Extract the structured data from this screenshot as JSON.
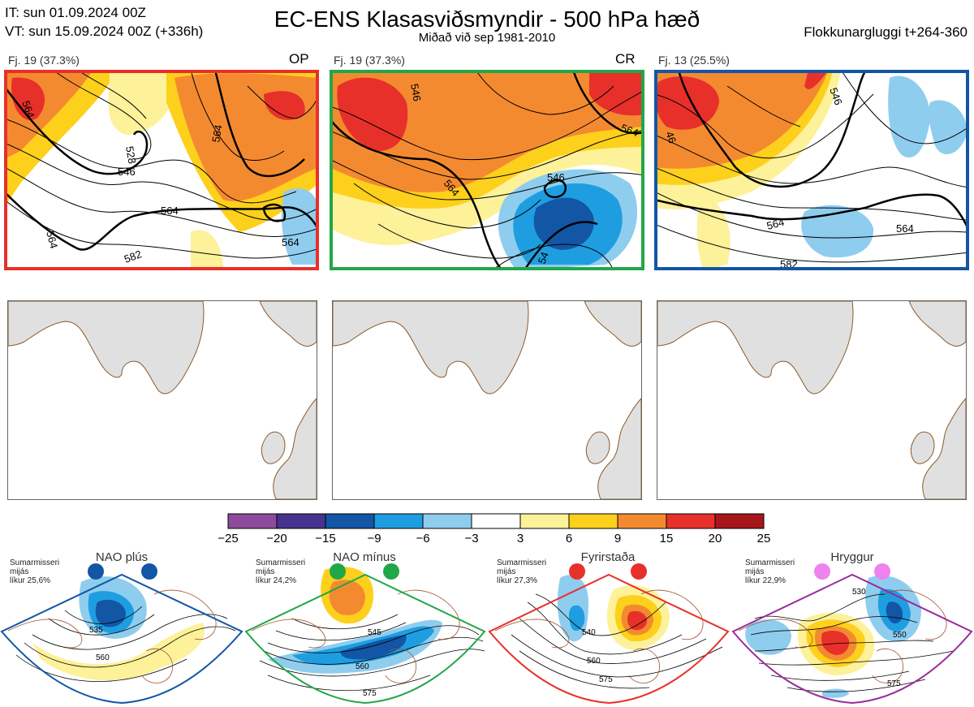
{
  "header": {
    "it_line": "IT: sun 01.09.2024 00Z",
    "vt_line": "VT: sun 15.09.2024 00Z  (+336h)",
    "title": "EC-ENS Klasasviðsmyndir - 500 hPa hæð",
    "subtitle": "Miðað við sep 1981-2010",
    "window": "Flokkunargluggi t+264-360"
  },
  "clusters": [
    {
      "label": "Fj. 19 (37.3%)",
      "tag": "OP",
      "border_color": "#e8302a",
      "contour_labels": [
        "564",
        "564",
        "546",
        "528",
        "564",
        "564",
        "564",
        "564",
        "582"
      ]
    },
    {
      "label": "Fj. 19 (37.3%)",
      "tag": "CR",
      "border_color": "#22a64a",
      "contour_labels": [
        "546",
        "564",
        "564",
        "546",
        "54"
      ]
    },
    {
      "label": "Fj. 13 (25.5%)",
      "tag": "",
      "border_color": "#1256a5",
      "contour_labels": [
        "46",
        "546",
        "564",
        "564",
        "582"
      ]
    }
  ],
  "colorbar": {
    "ticks": [
      "−25",
      "−20",
      "−15",
      "−9",
      "−6",
      "−3",
      "3",
      "6",
      "9",
      "15",
      "20",
      "25"
    ],
    "colors": [
      "#8e4a9c",
      "#46338f",
      "#1256a5",
      "#1e9ee0",
      "#8fcdef",
      "#ffffff",
      "#fdf199",
      "#fdd01c",
      "#f48a30",
      "#e8302a",
      "#a8161b"
    ]
  },
  "regimes": [
    {
      "title": "NAO plús",
      "info": [
        "Sumarmisseri",
        "mijás",
        "líkur 25,6%"
      ],
      "color": "#1256a5",
      "labels": [
        "535",
        "560"
      ]
    },
    {
      "title": "NAO mínus",
      "info": [
        "Sumarmisseri",
        "mijás",
        "líkur 24,2%"
      ],
      "color": "#22a64a",
      "labels": [
        "545",
        "560",
        "575"
      ]
    },
    {
      "title": "Fyrirstaða",
      "info": [
        "Sumarmisseri",
        "mijás",
        "líkur 27,3%"
      ],
      "color": "#e8302a",
      "labels": [
        "540",
        "560",
        "575"
      ]
    },
    {
      "title": "Hryggur",
      "info": [
        "Sumarmisseri",
        "mijás",
        "líkur 22,9%"
      ],
      "color": "#9a2b9c",
      "dot_color": "#ee82ee",
      "labels": [
        "530",
        "550",
        "575"
      ]
    }
  ]
}
